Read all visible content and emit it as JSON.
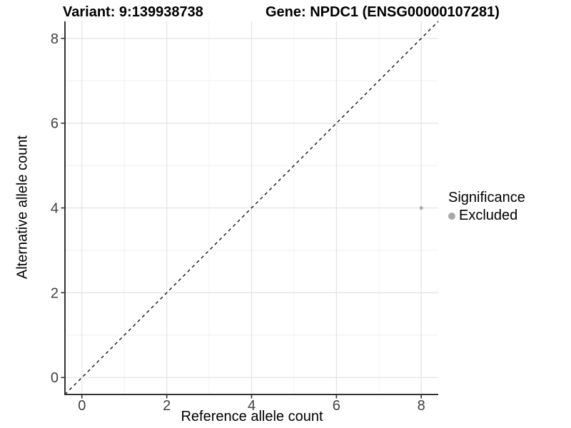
{
  "chart_data": {
    "type": "scatter",
    "title_variant": "Variant: 9:139938738",
    "title_gene": "Gene: NPDC1 (ENSG00000107281)",
    "xlabel": "Reference allele count",
    "ylabel": "Alternative allele count",
    "xlim": [
      -0.4,
      8.4
    ],
    "ylim": [
      -0.4,
      8.4
    ],
    "x_ticks": [
      0,
      2,
      4,
      6,
      8
    ],
    "y_ticks": [
      0,
      2,
      4,
      6,
      8
    ],
    "x_minor_ticks": [
      1,
      3,
      5,
      7
    ],
    "y_minor_ticks": [
      1,
      3,
      5,
      7
    ],
    "grid": "on",
    "identity_line": {
      "style": "dashed",
      "from": [
        -0.4,
        -0.4
      ],
      "to": [
        8.4,
        8.4
      ],
      "color": "#000000"
    },
    "series": [
      {
        "name": "Excluded",
        "color": "#b0b0b0",
        "points": [
          [
            8,
            4
          ]
        ]
      }
    ],
    "legend": {
      "title": "Significance",
      "position": "right",
      "items": [
        {
          "label": "Excluded",
          "color": "#a8a8a8"
        }
      ]
    },
    "colors": {
      "grid_major": "#e4e4e4",
      "grid_minor": "#f2f2f2",
      "axis_line": "#333333",
      "tick_mark": "#333333",
      "tick_label": "#404040",
      "background": "#ffffff"
    }
  }
}
